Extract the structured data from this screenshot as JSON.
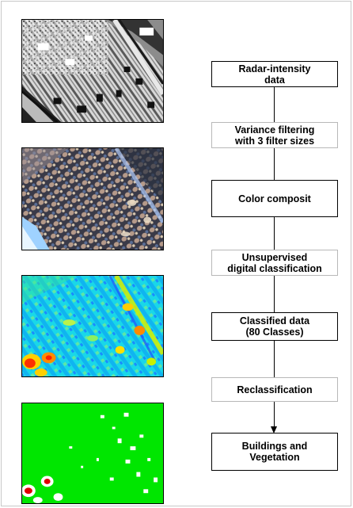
{
  "images": [
    {
      "name": "Radar-intensity image",
      "icon": "grayscale-radar-image"
    },
    {
      "name": "Color composite image",
      "icon": "color-composite-image"
    },
    {
      "name": "Classified image",
      "icon": "classified-heatmap-image"
    },
    {
      "name": "Reclassified image",
      "icon": "reclassified-image"
    }
  ],
  "steps": [
    {
      "lines": [
        "Radar-intensity",
        "data"
      ],
      "style": "strong"
    },
    {
      "lines": [
        "Variance filtering",
        "with 3 filter sizes"
      ],
      "style": "light"
    },
    {
      "lines": [
        "Color composit"
      ],
      "style": "strong"
    },
    {
      "lines": [
        "Unsupervised",
        "digital classification"
      ],
      "style": "light"
    },
    {
      "lines": [
        "Classified data",
        "(80 Classes)"
      ],
      "style": "strong"
    },
    {
      "lines": [
        "Reclassification"
      ],
      "style": "light"
    },
    {
      "lines": [
        "Buildings and",
        "Vegetation"
      ],
      "style": "strong"
    }
  ],
  "colors": {
    "vegetation_green": "#00e600",
    "building_white": "#ffffff",
    "highlight_red": "#e00000"
  }
}
